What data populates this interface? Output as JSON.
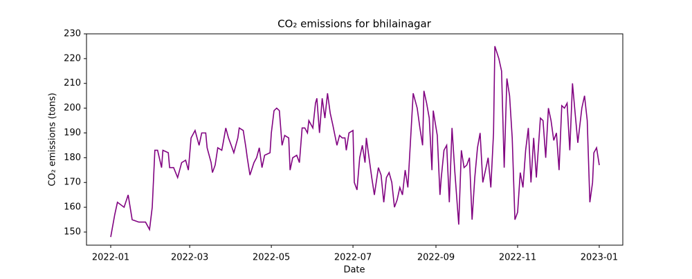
{
  "chart_data": {
    "type": "line",
    "title": "CO₂ emissions for bhilainagar",
    "x_label": "Date",
    "y_label": "CO₂ emissions (tons)",
    "x": [
      0,
      3,
      5,
      10,
      13,
      16,
      21,
      26,
      29,
      31,
      33,
      35,
      38,
      39,
      43,
      44,
      47,
      50,
      53,
      56,
      58,
      60,
      63,
      66,
      68,
      71,
      72,
      75,
      76,
      78,
      80,
      83,
      84,
      86,
      88,
      90,
      92,
      95,
      96,
      99,
      101,
      102,
      104,
      107,
      109,
      111,
      113,
      115,
      119,
      120,
      122,
      124,
      126,
      128,
      130,
      133,
      134,
      136,
      139,
      141,
      143,
      145,
      147,
      148,
      151,
      153,
      154,
      156,
      158,
      160,
      162,
      164,
      166,
      169,
      171,
      173,
      175,
      176,
      178,
      181,
      182,
      184,
      186,
      188,
      190,
      191,
      193,
      195,
      197,
      200,
      202,
      204,
      206,
      208,
      210,
      212,
      214,
      216,
      218,
      220,
      222,
      226,
      229,
      231,
      233,
      234,
      236,
      238,
      240,
      241,
      244,
      246,
      247,
      249,
      251,
      253,
      255,
      257,
      260,
      262,
      264,
      266,
      268,
      270,
      272,
      274,
      276,
      278,
      280,
      282,
      284,
      286,
      287,
      290,
      292,
      294,
      296,
      298,
      300,
      302,
      304,
      306,
      308,
      310,
      312,
      314,
      316,
      318,
      321,
      323,
      325,
      327,
      329,
      331,
      333,
      335,
      337,
      339,
      341,
      343,
      345,
      347,
      349,
      352,
      354,
      356,
      358,
      360,
      361,
      363,
      365
    ],
    "series": [
      {
        "name": "CO₂ emissions",
        "color": "#800080",
        "values": [
          148,
          157,
          162,
          160,
          165,
          155,
          154,
          154,
          151,
          160,
          183,
          183,
          176,
          183,
          182,
          176,
          176,
          172,
          178,
          179,
          175,
          188,
          191,
          185,
          190,
          190,
          184,
          178,
          174,
          177,
          184,
          183,
          186,
          192,
          188,
          185,
          182,
          188,
          192,
          191,
          184,
          180,
          173,
          178,
          180,
          184,
          176,
          181,
          182,
          190,
          199,
          200,
          199,
          185,
          189,
          188,
          175,
          180,
          181,
          178,
          192,
          192,
          190,
          195,
          192,
          202,
          204,
          190,
          204,
          196,
          206,
          198,
          193,
          185,
          189,
          188,
          188,
          183,
          190,
          191,
          170,
          167,
          180,
          185,
          178,
          188,
          180,
          172,
          165,
          176,
          173,
          162,
          172,
          174,
          170,
          160,
          163,
          168,
          165,
          175,
          168,
          206,
          200,
          192,
          185,
          207,
          202,
          196,
          175,
          199,
          189,
          165,
          172,
          183,
          185,
          162,
          192,
          175,
          153,
          183,
          176,
          177,
          180,
          155,
          172,
          184,
          190,
          170,
          175,
          180,
          168,
          190,
          225,
          220,
          215,
          176,
          212,
          205,
          188,
          155,
          158,
          174,
          168,
          183,
          192,
          170,
          188,
          172,
          196,
          195,
          180,
          200,
          195,
          187,
          190,
          175,
          201,
          200,
          202,
          183,
          210,
          198,
          186,
          200,
          205,
          195,
          162,
          170,
          182,
          184,
          177
        ]
      }
    ],
    "xlim": [
      -18.1,
      382.6
    ],
    "xticks": [
      {
        "value": 0,
        "label": "2022-01"
      },
      {
        "value": 59,
        "label": "2022-03"
      },
      {
        "value": 120,
        "label": "2022-05"
      },
      {
        "value": 181,
        "label": "2022-07"
      },
      {
        "value": 243,
        "label": "2022-09"
      },
      {
        "value": 304,
        "label": "2022-11"
      },
      {
        "value": 365,
        "label": "2023-01"
      }
    ],
    "ylim": [
      144.7,
      230
    ],
    "yticks": [
      150,
      160,
      170,
      180,
      190,
      200,
      210,
      220,
      230
    ],
    "grid": false
  }
}
